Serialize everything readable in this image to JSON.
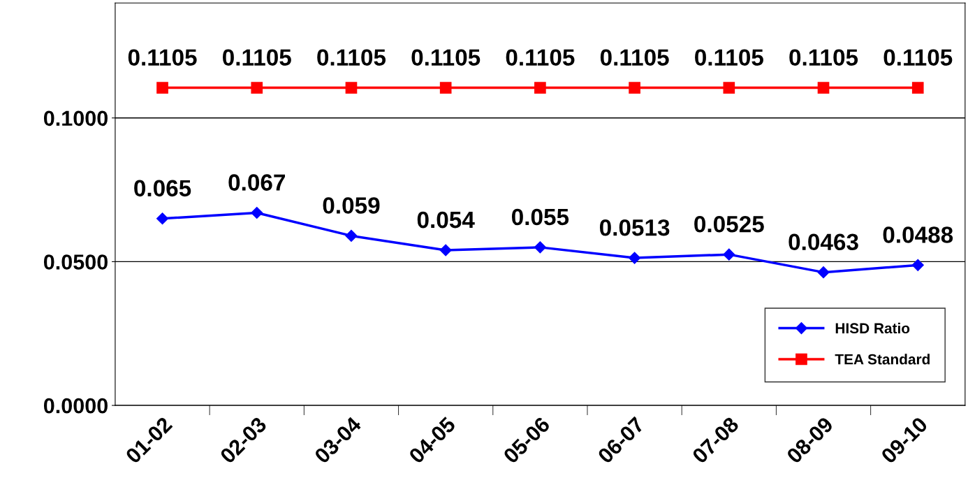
{
  "chart_data": {
    "type": "line",
    "categories": [
      "01-02",
      "02-03",
      "03-04",
      "04-05",
      "05-06",
      "06-07",
      "07-08",
      "08-09",
      "09-10"
    ],
    "series": [
      {
        "name": "HISD Ratio",
        "color": "#0000ff",
        "marker": "diamond",
        "values": [
          0.065,
          0.067,
          0.059,
          0.054,
          0.055,
          0.0513,
          0.0525,
          0.0463,
          0.0488
        ]
      },
      {
        "name": "TEA Standard",
        "color": "#ff0000",
        "marker": "square",
        "values": [
          0.1105,
          0.1105,
          0.1105,
          0.1105,
          0.1105,
          0.1105,
          0.1105,
          0.1105,
          0.1105
        ]
      }
    ],
    "ylim": [
      0,
      0.14
    ],
    "yticks": [
      {
        "value": 0,
        "label": "0.0000"
      },
      {
        "value": 0.05,
        "label": "0.0500"
      },
      {
        "value": 0.1,
        "label": "0.1000"
      }
    ],
    "grid": "y",
    "legend": "right",
    "data_labels": true,
    "line_style": "solid"
  }
}
